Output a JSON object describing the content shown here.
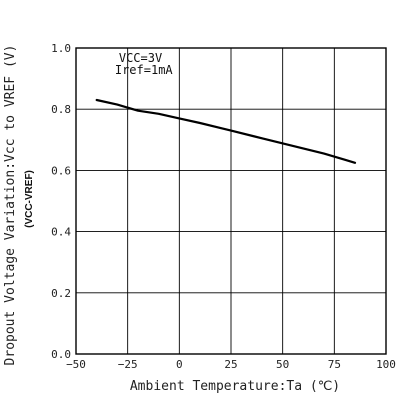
{
  "chart_data": {
    "type": "line",
    "xlabel": "Ambient Temperature:Ta (℃)",
    "ylabel": "Dropout Voltage Variation:Vcc to VREF  (V)",
    "ylabel_sub": "(VCC-VREF)",
    "xlim": [
      -50,
      100
    ],
    "ylim": [
      0.0,
      1.0
    ],
    "xticks": [
      -50,
      -25,
      0,
      25,
      50,
      75,
      100
    ],
    "xtick_labels": [
      "−50",
      "−25",
      "0",
      "25",
      "50",
      "75",
      "100"
    ],
    "yticks": [
      0.0,
      0.2,
      0.4,
      0.6,
      0.8,
      1.0
    ],
    "ytick_labels": [
      "0.0",
      "0.2",
      "0.4",
      "0.6",
      "0.8",
      "1.0"
    ],
    "grid": true,
    "annotations": [
      "VCC=3V",
      "Iref=1mA"
    ],
    "series": [
      {
        "x": [
          -40,
          -30,
          -20,
          -10,
          0,
          10,
          25,
          40,
          55,
          70,
          80,
          85
        ],
        "y": [
          0.83,
          0.815,
          0.795,
          0.785,
          0.77,
          0.755,
          0.73,
          0.705,
          0.68,
          0.655,
          0.635,
          0.625
        ]
      }
    ]
  }
}
